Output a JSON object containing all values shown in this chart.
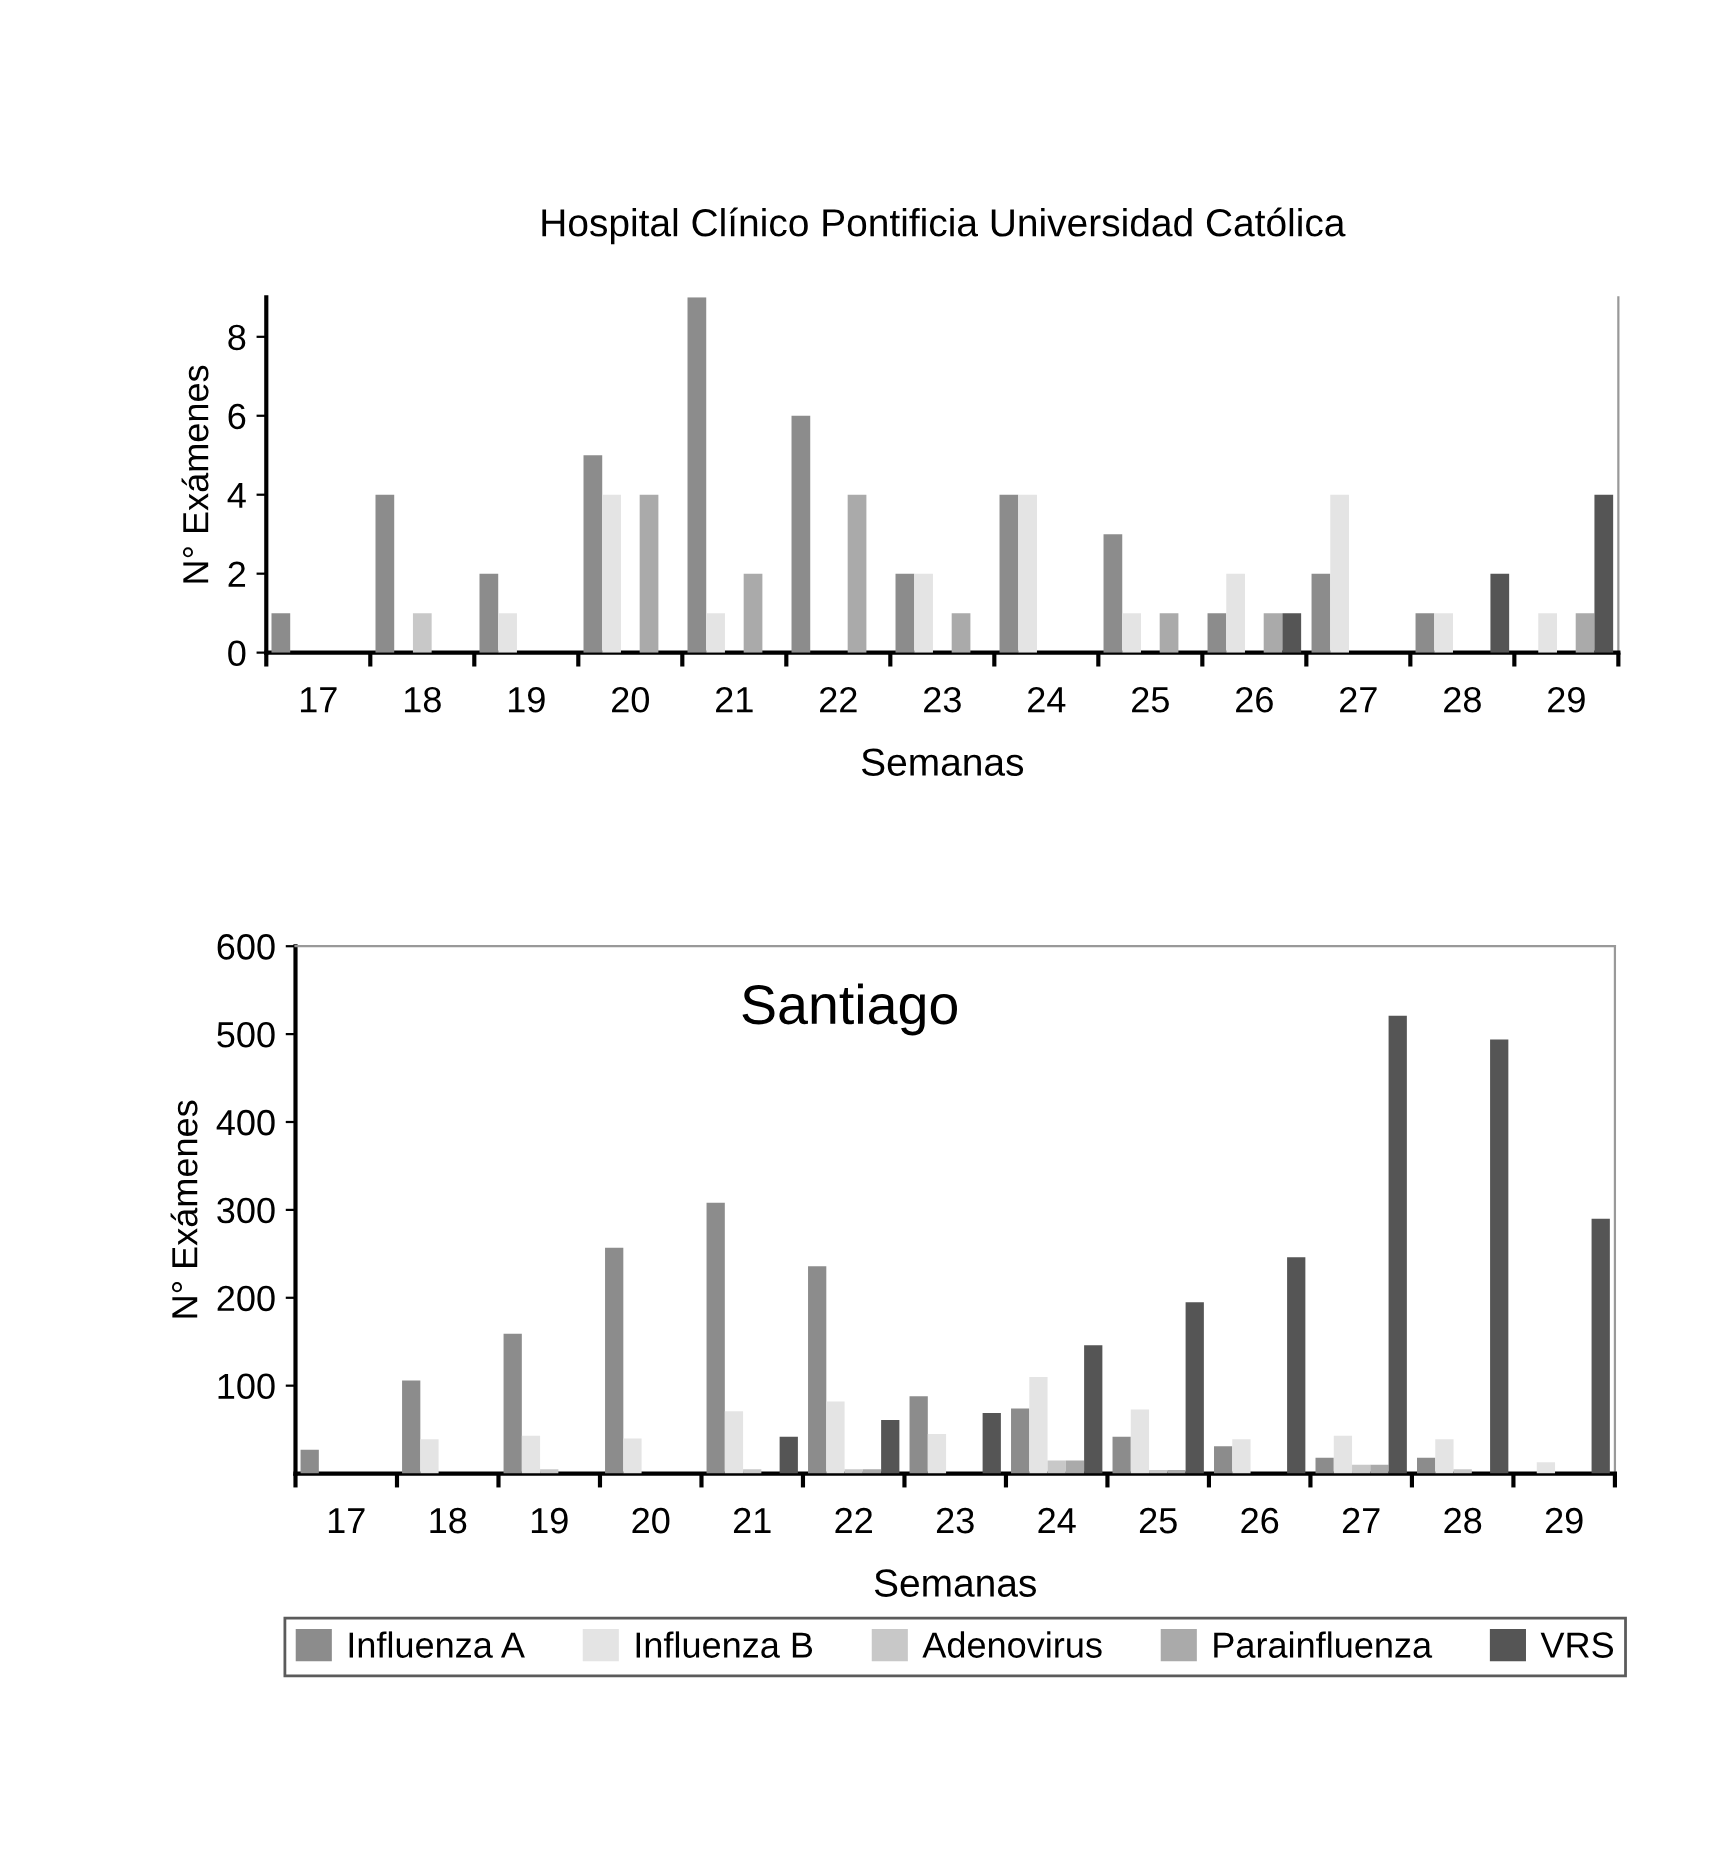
{
  "chart_data": [
    {
      "type": "bar",
      "title": "Hospital Clínico Pontificia Universidad Católica",
      "xlabel": "Semanas",
      "ylabel": "N° Exámenes",
      "categories": [
        "17",
        "18",
        "19",
        "20",
        "21",
        "22",
        "23",
        "24",
        "25",
        "26",
        "27",
        "28",
        "29"
      ],
      "ylim": [
        0,
        9
      ],
      "yticks": [
        0,
        2,
        4,
        6,
        8
      ],
      "series": [
        {
          "color": "#8c8c8c",
          "values": [
            1,
            4,
            2,
            5,
            9,
            6,
            2,
            4,
            3,
            1,
            2,
            1,
            null
          ]
        },
        {
          "color": "#e4e4e4",
          "values": [
            null,
            null,
            1,
            4,
            1,
            null,
            2,
            4,
            1,
            2,
            4,
            1,
            1
          ]
        },
        {
          "color": "#c8c8c8",
          "values": [
            null,
            1,
            null,
            null,
            null,
            null,
            null,
            null,
            null,
            null,
            null,
            null,
            null
          ]
        },
        {
          "color": "#aaaaaa",
          "values": [
            null,
            null,
            null,
            4,
            2,
            4,
            1,
            null,
            1,
            1,
            null,
            null,
            1
          ]
        },
        {
          "color": "#555555",
          "values": [
            null,
            null,
            null,
            null,
            null,
            null,
            null,
            null,
            null,
            1,
            null,
            2,
            4
          ]
        }
      ]
    },
    {
      "type": "bar",
      "xlabel": "Semanas",
      "ylabel": "N° Exámenes",
      "annotations": [
        "Santiago"
      ],
      "categories": [
        "17",
        "18",
        "19",
        "20",
        "21",
        "22",
        "23",
        "24",
        "25",
        "26",
        "27",
        "28",
        "29"
      ],
      "ylim": [
        0,
        600
      ],
      "yticks": [
        100,
        200,
        300,
        400,
        500,
        600
      ],
      "legend": "bottom",
      "series": [
        {
          "name": "Influenza A",
          "color": "#8c8c8c",
          "values": [
            27,
            106,
            159,
            257,
            308,
            236,
            88,
            74,
            42,
            31,
            18,
            18,
            null
          ]
        },
        {
          "name": "Influenza B",
          "color": "#e4e4e4",
          "values": [
            null,
            39,
            43,
            40,
            71,
            82,
            45,
            110,
            73,
            39,
            43,
            39,
            13
          ]
        },
        {
          "name": "Adenovirus",
          "color": "#c8c8c8",
          "values": [
            null,
            null,
            5,
            null,
            5,
            5,
            null,
            15,
            4,
            null,
            10,
            5,
            null
          ]
        },
        {
          "name": "Parainfluenza",
          "color": "#aaaaaa",
          "values": [
            null,
            null,
            null,
            null,
            null,
            5,
            null,
            15,
            4,
            null,
            10,
            null,
            null
          ]
        },
        {
          "name": "VRS",
          "color": "#555555",
          "values": [
            null,
            null,
            null,
            null,
            42,
            61,
            69,
            146,
            195,
            246,
            521,
            494,
            290
          ]
        }
      ]
    }
  ]
}
